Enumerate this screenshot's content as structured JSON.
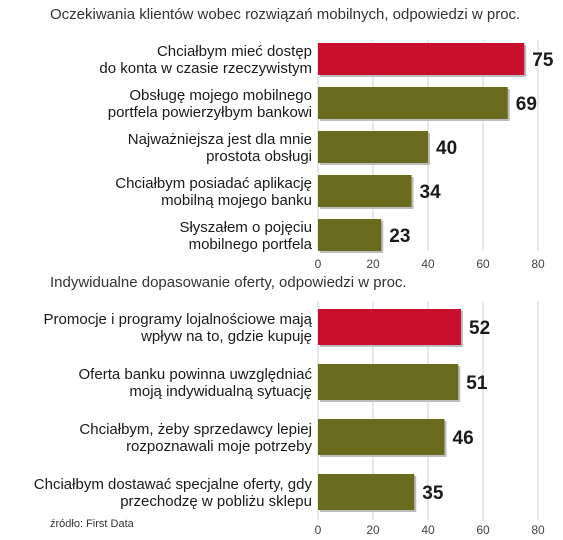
{
  "chart_data": [
    {
      "type": "bar",
      "orientation": "horizontal",
      "title": "Oczekiwania klientów wobec rozwiązań mobilnych, odpowiedzi w proc.",
      "categories": [
        [
          "Chciałbym mieć dostęp",
          "do konta w czasie rzeczywistym"
        ],
        [
          "Obsługę mojego mobilnego",
          "portfela powierzyłbym bankowi"
        ],
        [
          "Najważniejsza jest dla mnie",
          "prostota obsługi"
        ],
        [
          "Chciałbym posiadać aplikację",
          "mobilną mojego banku"
        ],
        [
          "Słyszałem o pojęciu",
          "mobilnego portfela"
        ]
      ],
      "values": [
        75,
        69,
        40,
        34,
        23
      ],
      "value_labels": [
        "75",
        "69",
        "40",
        "34",
        "23"
      ],
      "colors": [
        "#c8102e",
        "#6b6b1f",
        "#6b6b1f",
        "#6b6b1f",
        "#6b6b1f"
      ],
      "xlim": [
        0,
        80
      ],
      "ticks": [
        "0",
        "20",
        "40",
        "60",
        "80"
      ],
      "grid": true
    },
    {
      "type": "bar",
      "orientation": "horizontal",
      "title": "Indywidualne dopasowanie oferty, odpowiedzi w proc.",
      "categories": [
        [
          "Promocje i programy lojalnościowe mają",
          "wpływ na to, gdzie kupuję"
        ],
        [
          "Oferta banku powinna uwzględniać",
          "moją indywidualną sytuację"
        ],
        [
          "Chciałbym, żeby sprzedawcy lepiej",
          "rozpoznawali moje potrzeby"
        ],
        [
          "Chciałbym dostawać specjalne oferty, gdy",
          "przechodzę w pobliżu sklepu"
        ]
      ],
      "values": [
        52,
        51,
        46,
        35
      ],
      "value_labels": [
        "52",
        "51",
        "46",
        "35"
      ],
      "colors": [
        "#c8102e",
        "#6b6b1f",
        "#6b6b1f",
        "#6b6b1f"
      ],
      "xlim": [
        0,
        80
      ],
      "ticks": [
        "0",
        "20",
        "40",
        "60",
        "80"
      ],
      "grid": true
    }
  ],
  "source": "źródło: First Data"
}
